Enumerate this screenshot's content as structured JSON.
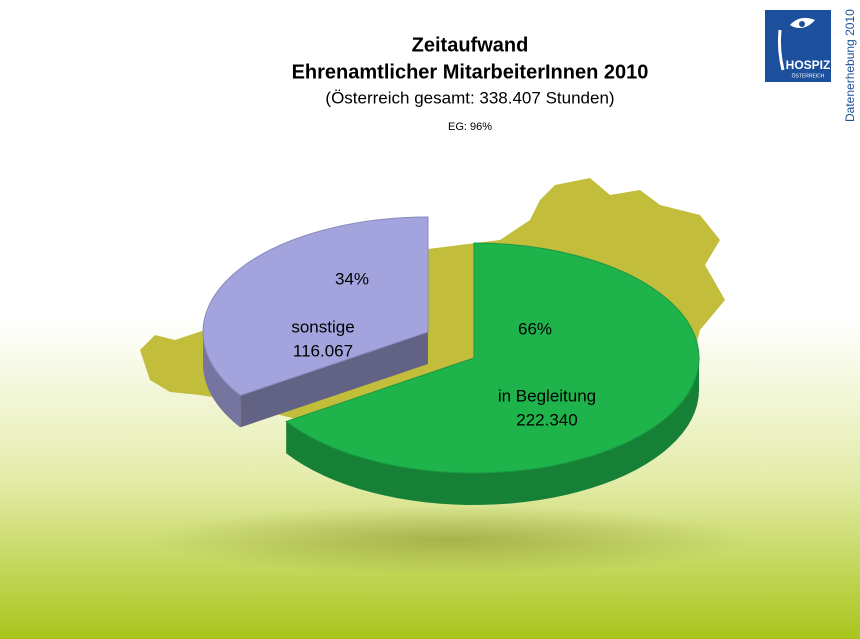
{
  "chart_data": {
    "type": "pie",
    "title": "Zeitaufwand",
    "subtitle": "Ehrenamtlicher MitarbeiterInnen 2010",
    "total_note": "(Österreich gesamt: 338.407 Stunden)",
    "note": "EG: 96%",
    "categories": [
      "sonstige",
      "in Begleitung"
    ],
    "values": [
      116067,
      222340
    ],
    "value_labels": [
      "116.067",
      "222.340"
    ],
    "percentages": [
      34,
      66
    ],
    "percentage_labels": [
      "34%",
      "66%"
    ],
    "colors": [
      "#a3a3dd",
      "#1fb34b"
    ]
  },
  "logo": {
    "name": "HOSPIZ",
    "country": "ÖSTERREICH",
    "side_text": "Datenerhebung 2010"
  }
}
